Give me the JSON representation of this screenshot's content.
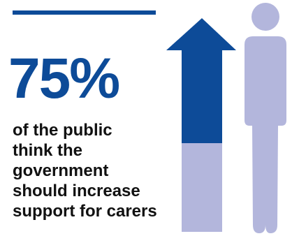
{
  "headline": {
    "value": "75%",
    "caption_lines": [
      "of the public",
      "think the",
      "government",
      "should increase",
      "support for carers"
    ]
  },
  "colors": {
    "accent_dark": "#0d4b98",
    "accent_light": "#b3b6dc",
    "text": "#111111"
  },
  "icons": [
    "up-arrow-icon",
    "person-icon"
  ],
  "arrow_fill_percent": 75
}
